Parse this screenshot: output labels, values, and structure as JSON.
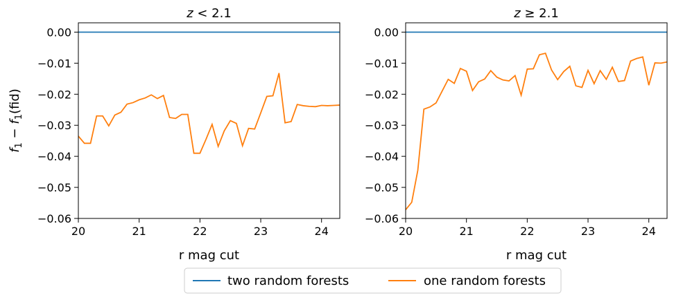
{
  "chart_data": [
    {
      "type": "line",
      "title": "z < 2.1",
      "title_var": "z",
      "title_op": " < 2.1",
      "xlabel": "r mag cut",
      "ylabel": "f₁ − f₁(fid)",
      "ylabel_parts": [
        "f",
        "1",
        " − ",
        "f",
        "1",
        "(fid)"
      ],
      "xlim": [
        20,
        24.3
      ],
      "ylim": [
        -0.06,
        0.003
      ],
      "xticks": [
        "20",
        "21",
        "22",
        "23",
        "24"
      ],
      "yticks": [
        "0.00",
        "−0.01",
        "−0.02",
        "−0.03",
        "−0.04",
        "−0.05",
        "−0.06"
      ],
      "series": [
        {
          "name": "two random forests",
          "color": "#1f77b4",
          "x": [
            20,
            24.3
          ],
          "y": [
            0,
            0
          ]
        },
        {
          "name": "one random forests",
          "color": "#ff7f0e",
          "x": [
            20.0,
            20.1,
            20.2,
            20.3,
            20.4,
            20.5,
            20.6,
            20.7,
            20.8,
            20.9,
            21.0,
            21.1,
            21.2,
            21.3,
            21.4,
            21.5,
            21.6,
            21.7,
            21.8,
            21.9,
            22.0,
            22.1,
            22.2,
            22.3,
            22.4,
            22.5,
            22.6,
            22.7,
            22.8,
            22.9,
            23.0,
            23.1,
            23.2,
            23.3,
            23.4,
            23.5,
            23.6,
            23.7,
            23.8,
            23.9,
            24.0,
            24.1,
            24.2,
            24.3
          ],
          "y": [
            -0.0335,
            -0.0358,
            -0.0358,
            -0.027,
            -0.027,
            -0.0302,
            -0.0267,
            -0.0258,
            -0.0232,
            -0.0227,
            -0.0218,
            -0.0212,
            -0.0202,
            -0.0214,
            -0.0204,
            -0.0275,
            -0.0278,
            -0.0265,
            -0.0265,
            -0.039,
            -0.039,
            -0.0345,
            -0.0297,
            -0.0368,
            -0.0318,
            -0.0285,
            -0.0294,
            -0.0366,
            -0.031,
            -0.0312,
            -0.026,
            -0.0207,
            -0.0205,
            -0.0132,
            -0.0292,
            -0.0288,
            -0.0233,
            -0.0237,
            -0.0239,
            -0.024,
            -0.0236,
            -0.0237,
            -0.0236,
            -0.0235
          ]
        }
      ]
    },
    {
      "type": "line",
      "title": "z ≥ 2.1",
      "title_var": "z",
      "title_op": " ≥ 2.1",
      "xlabel": "r mag cut",
      "ylabel": "",
      "xlim": [
        20,
        24.3
      ],
      "ylim": [
        -0.06,
        0.003
      ],
      "xticks": [
        "20",
        "21",
        "22",
        "23",
        "24"
      ],
      "yticks": [
        "0.00",
        "−0.01",
        "−0.02",
        "−0.03",
        "−0.04",
        "−0.05",
        "−0.06"
      ],
      "series": [
        {
          "name": "two random forests",
          "color": "#1f77b4",
          "x": [
            20,
            24.3
          ],
          "y": [
            0,
            0
          ]
        },
        {
          "name": "one random forests",
          "color": "#ff7f0e",
          "x": [
            20.0,
            20.1,
            20.2,
            20.3,
            20.4,
            20.5,
            20.6,
            20.7,
            20.8,
            20.9,
            21.0,
            21.1,
            21.2,
            21.3,
            21.4,
            21.5,
            21.6,
            21.7,
            21.8,
            21.9,
            22.0,
            22.1,
            22.2,
            22.3,
            22.4,
            22.5,
            22.6,
            22.7,
            22.8,
            22.9,
            23.0,
            23.1,
            23.2,
            23.3,
            23.4,
            23.5,
            23.6,
            23.7,
            23.8,
            23.9,
            24.0,
            24.1,
            24.2,
            24.3
          ],
          "y": [
            -0.0572,
            -0.0548,
            -0.0445,
            -0.0248,
            -0.0241,
            -0.0228,
            -0.019,
            -0.0152,
            -0.0165,
            -0.0117,
            -0.0126,
            -0.0188,
            -0.016,
            -0.0151,
            -0.0124,
            -0.0145,
            -0.0154,
            -0.0157,
            -0.014,
            -0.0203,
            -0.0119,
            -0.0118,
            -0.0073,
            -0.0068,
            -0.0122,
            -0.0153,
            -0.0127,
            -0.011,
            -0.0173,
            -0.0178,
            -0.0123,
            -0.0166,
            -0.0124,
            -0.0152,
            -0.0113,
            -0.0159,
            -0.0156,
            -0.0093,
            -0.0085,
            -0.008,
            -0.0171,
            -0.0099,
            -0.01,
            -0.0096
          ]
        }
      ]
    }
  ],
  "legend": {
    "items": [
      {
        "label": "two random forests",
        "color": "#1f77b4"
      },
      {
        "label": "one random forests",
        "color": "#ff7f0e"
      }
    ]
  }
}
